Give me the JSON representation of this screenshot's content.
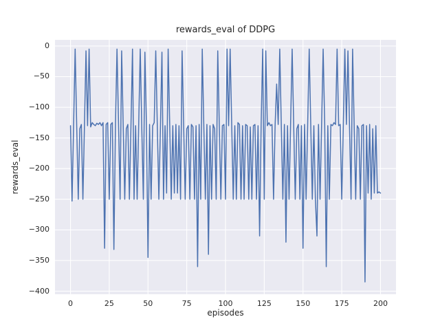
{
  "chart_data": {
    "type": "line",
    "title": "rewards_eval of DDPG",
    "xlabel": "episodes",
    "ylabel": "rewards_eval",
    "xlim": [
      -10,
      210
    ],
    "ylim": [
      -405,
      10
    ],
    "x_ticks": [
      0,
      25,
      50,
      75,
      100,
      125,
      150,
      175,
      200
    ],
    "x_tick_labels": [
      "0",
      "25",
      "50",
      "75",
      "100",
      "125",
      "150",
      "175",
      "200"
    ],
    "y_ticks": [
      0,
      -50,
      -100,
      -150,
      -200,
      -250,
      -300,
      -350,
      -400
    ],
    "y_tick_labels": [
      "0",
      "−50",
      "−100",
      "−150",
      "−200",
      "−250",
      "−300",
      "−350",
      "−400"
    ],
    "grid": true,
    "legend": false,
    "line_color": "#4c72b0",
    "grid_color": "#ffffff",
    "plot_background": "#eaeaf2",
    "text_color": "#262626",
    "x_start": 0,
    "x_step": 1,
    "values": [
      -130,
      -253,
      -130,
      -5,
      -130,
      -250,
      -135,
      -128,
      -250,
      -130,
      -8,
      -130,
      -5,
      -132,
      -125,
      -128,
      -130,
      -126,
      -128,
      -125,
      -130,
      -125,
      -330,
      -128,
      -125,
      -250,
      -128,
      -125,
      -332,
      -130,
      -5,
      -128,
      -250,
      -8,
      -130,
      -250,
      -135,
      -128,
      -250,
      -132,
      -5,
      -250,
      -130,
      -250,
      -128,
      -5,
      -135,
      -250,
      -10,
      -130,
      -345,
      -128,
      -250,
      -130,
      -125,
      -8,
      -130,
      -250,
      -135,
      -10,
      -250,
      -130,
      -240,
      -5,
      -128,
      -250,
      -130,
      -240,
      -128,
      -240,
      -130,
      -250,
      -8,
      -130,
      -250,
      -135,
      -130,
      -250,
      -128,
      -132,
      -250,
      -130,
      -360,
      -128,
      -250,
      -5,
      -130,
      -250,
      -128,
      -340,
      -130,
      -250,
      -128,
      -135,
      -250,
      -8,
      -130,
      -250,
      -130,
      -128,
      -250,
      -5,
      -130,
      -5,
      -128,
      -250,
      -130,
      -250,
      -125,
      -128,
      -250,
      -130,
      -250,
      -128,
      -130,
      -250,
      -132,
      -250,
      -130,
      -128,
      -250,
      -130,
      -310,
      -128,
      -5,
      -250,
      -8,
      -130,
      -125,
      -130,
      -128,
      -250,
      -130,
      -62,
      -128,
      -5,
      -130,
      -250,
      -128,
      -320,
      -130,
      -250,
      -128,
      -5,
      -130,
      -250,
      -135,
      -128,
      -250,
      -130,
      -330,
      -128,
      -250,
      -130,
      -5,
      -128,
      -250,
      -130,
      -250,
      -310,
      -128,
      -250,
      -130,
      -5,
      -128,
      -360,
      -130,
      -250,
      -128,
      -130,
      -125,
      -128,
      -5,
      -130,
      -128,
      -250,
      -130,
      -5,
      -128,
      -8,
      -130,
      -250,
      -5,
      -128,
      -250,
      -130,
      -135,
      -250,
      -130,
      -128,
      -385,
      -130,
      -240,
      -128,
      -250,
      -135,
      -240,
      -130,
      -240,
      -238,
      -240
    ]
  }
}
